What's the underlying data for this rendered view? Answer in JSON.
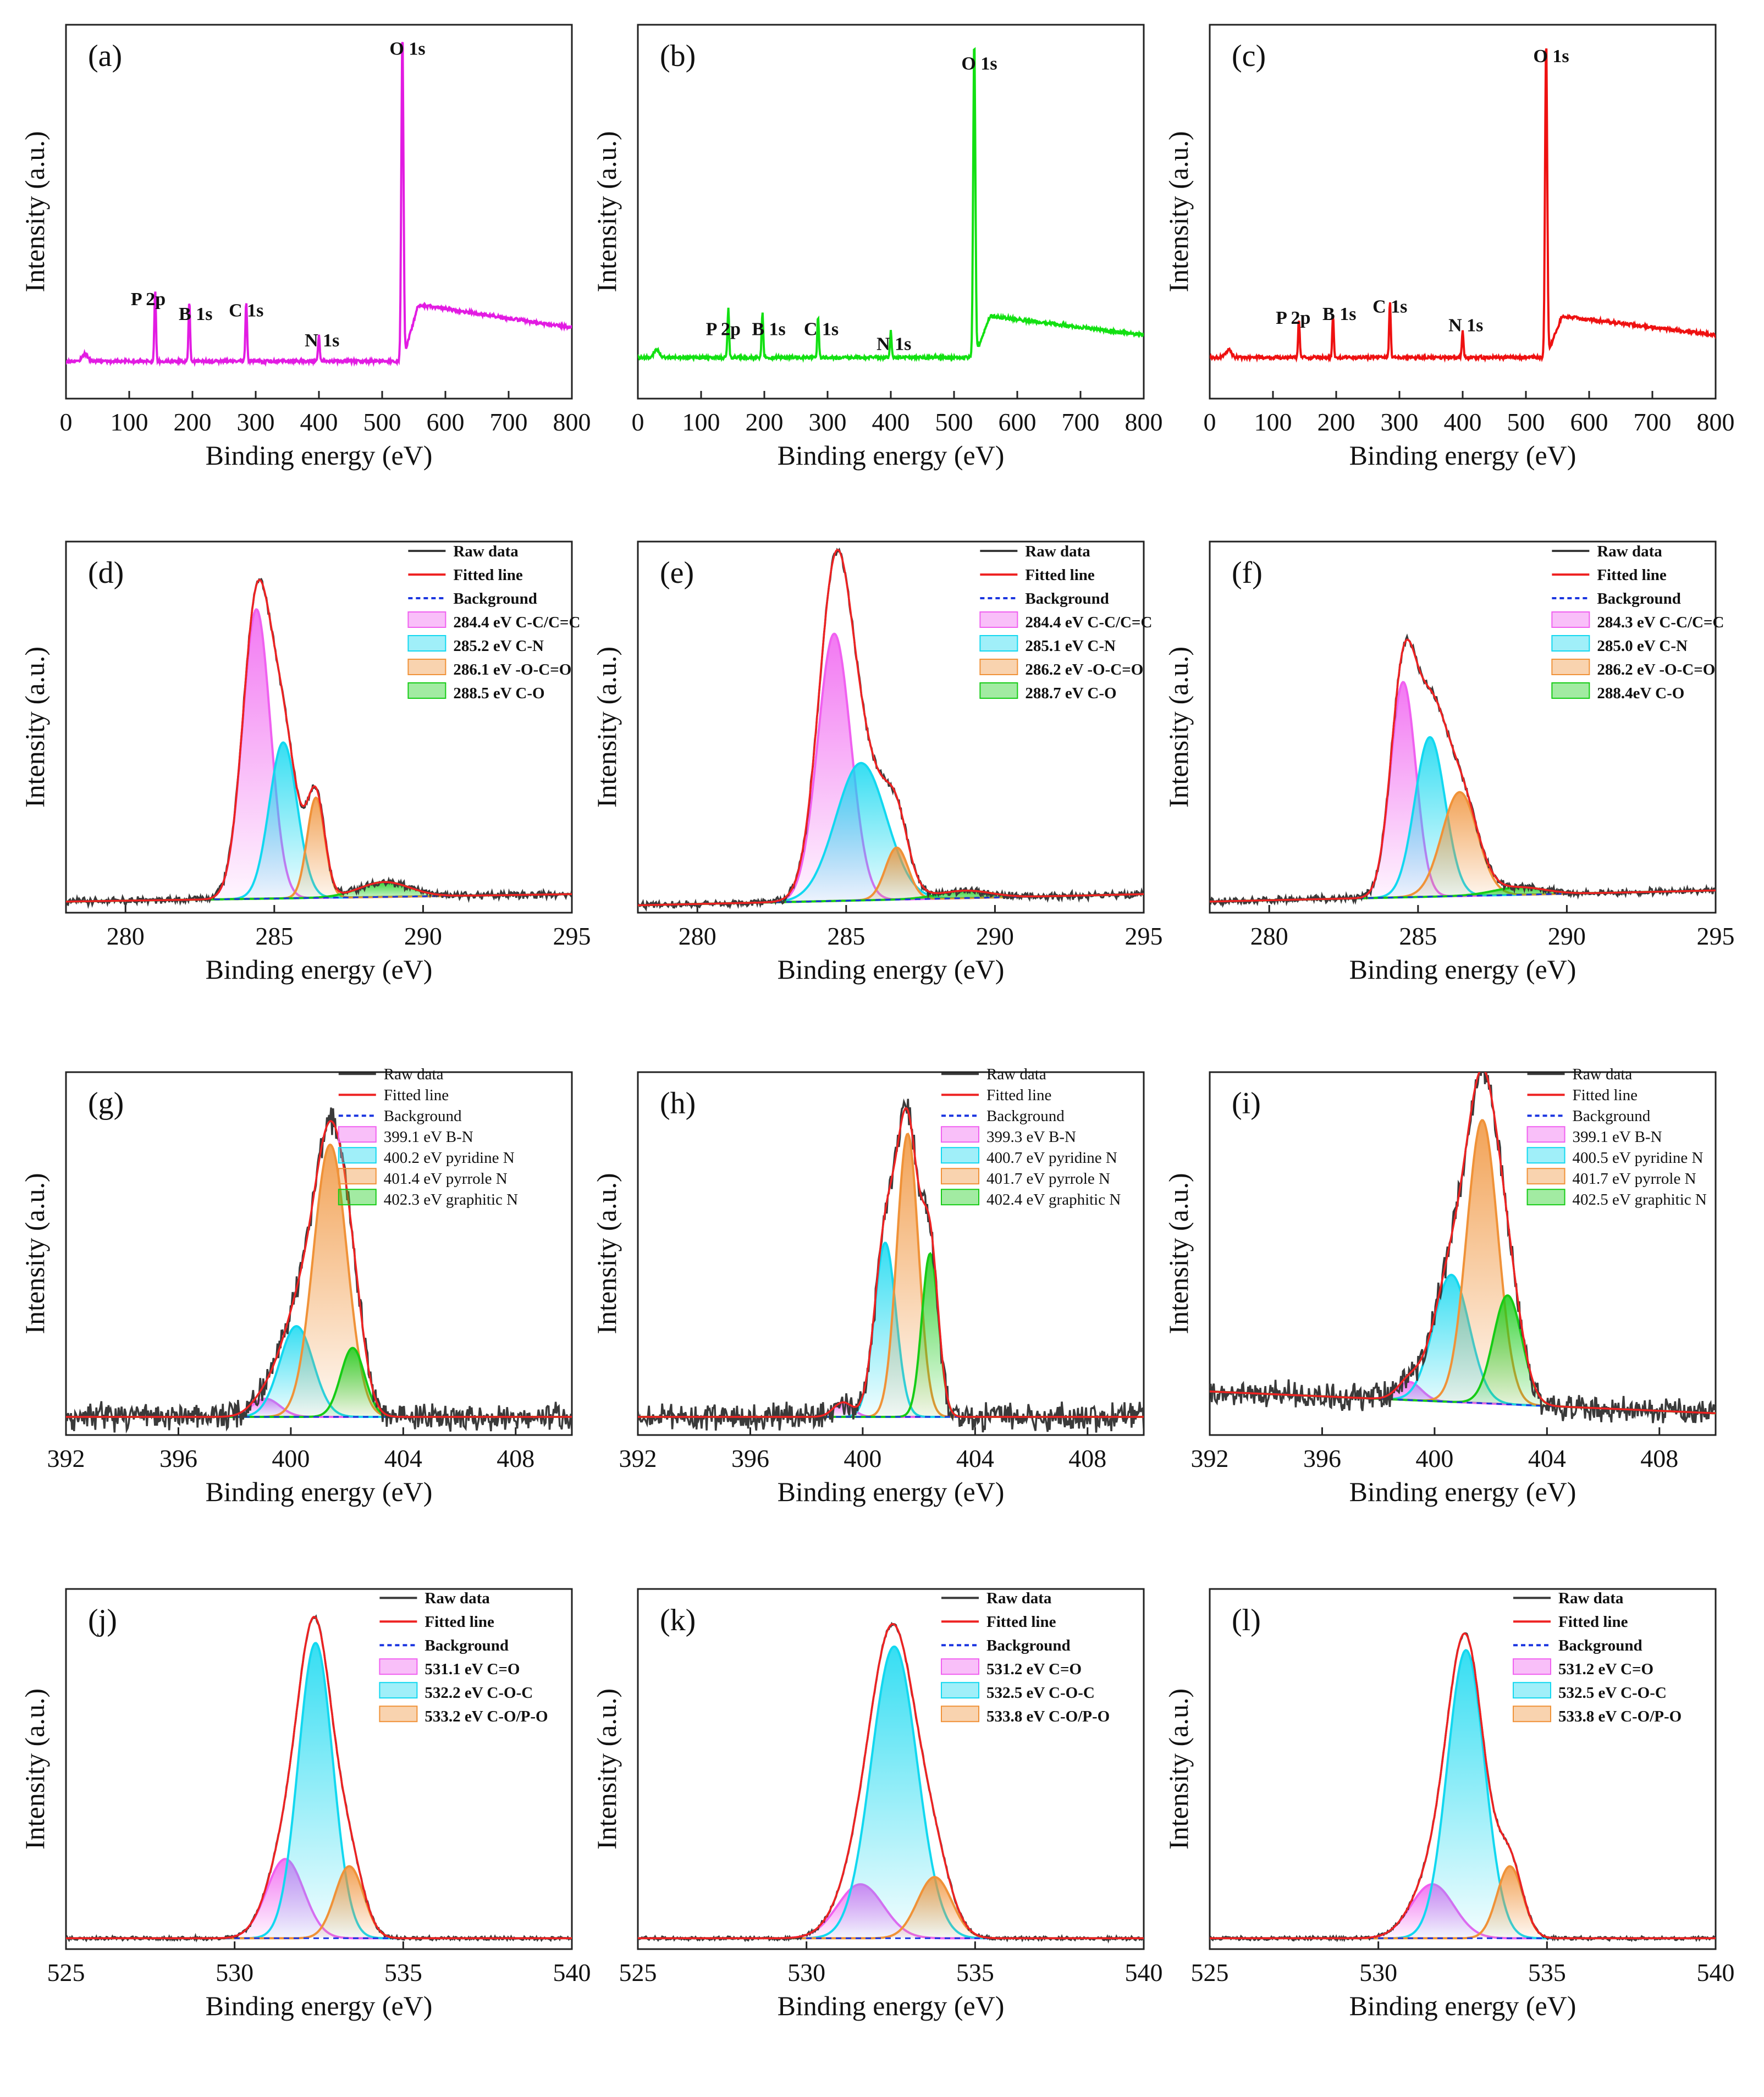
{
  "figure": {
    "xlabel": "Binding energy (eV)",
    "ylabel": "Intensity (a.u.)"
  },
  "colors": {
    "survey_a": "#e21be2",
    "survey_b": "#12e012",
    "survey_c": "#ee1111",
    "raw": "#3a3a3a",
    "fitted": "#ee2222",
    "background": "#1a35e0",
    "comp_pink": "#f060f0",
    "comp_cyan": "#12d8f0",
    "comp_orange": "#f09238",
    "comp_green": "#16cc16"
  },
  "chart_data": [
    {
      "id": "a",
      "label": "(a)",
      "type": "line",
      "region": "survey",
      "color_key": "survey_a",
      "xlim": [
        0,
        800
      ],
      "xticks": [
        0,
        100,
        200,
        300,
        400,
        500,
        600,
        700,
        800
      ],
      "ylim": [
        0,
        1
      ],
      "peaks": [
        {
          "name": "P 2p",
          "x": 141,
          "h": 0.19
        },
        {
          "name": "B 1s",
          "x": 195,
          "h": 0.16
        },
        {
          "name": "C 1s",
          "x": 285,
          "h": 0.16
        },
        {
          "name": "N 1s",
          "x": 400,
          "h": 0.07
        },
        {
          "name": "O 1s",
          "x": 532,
          "h": 0.88
        }
      ],
      "peak_labels": [
        {
          "text": "P 2p",
          "x": 130,
          "y": 0.25
        },
        {
          "text": "B 1s",
          "x": 205,
          "y": 0.21
        },
        {
          "text": "C 1s",
          "x": 285,
          "y": 0.22
        },
        {
          "text": "N 1s",
          "x": 405,
          "y": 0.14
        },
        {
          "text": "O 1s",
          "x": 540,
          "y": 0.92
        }
      ],
      "baseline": 0.1,
      "post_level": 0.25,
      "post_decay": 0.06
    },
    {
      "id": "b",
      "label": "(b)",
      "type": "line",
      "region": "survey",
      "color_key": "survey_b",
      "xlim": [
        0,
        800
      ],
      "xticks": [
        0,
        100,
        200,
        300,
        400,
        500,
        600,
        700,
        800
      ],
      "ylim": [
        0,
        1
      ],
      "peaks": [
        {
          "name": "P 2p",
          "x": 143,
          "h": 0.13
        },
        {
          "name": "B 1s",
          "x": 197,
          "h": 0.12
        },
        {
          "name": "C 1s",
          "x": 285,
          "h": 0.11
        },
        {
          "name": "N 1s",
          "x": 400,
          "h": 0.07
        },
        {
          "name": "O 1s",
          "x": 532,
          "h": 0.85
        }
      ],
      "peak_labels": [
        {
          "text": "P 2p",
          "x": 135,
          "y": 0.17
        },
        {
          "text": "B 1s",
          "x": 207,
          "y": 0.17
        },
        {
          "text": "C 1s",
          "x": 290,
          "y": 0.17
        },
        {
          "text": "N 1s",
          "x": 405,
          "y": 0.13
        },
        {
          "text": "O 1s",
          "x": 540,
          "y": 0.88
        }
      ],
      "baseline": 0.11,
      "post_level": 0.22,
      "post_decay": 0.05
    },
    {
      "id": "c",
      "label": "(c)",
      "type": "line",
      "region": "survey",
      "color_key": "survey_c",
      "xlim": [
        0,
        800
      ],
      "xticks": [
        0,
        100,
        200,
        300,
        400,
        500,
        600,
        700,
        800
      ],
      "ylim": [
        0,
        1
      ],
      "peaks": [
        {
          "name": "P 2p",
          "x": 141,
          "h": 0.1
        },
        {
          "name": "B 1s",
          "x": 195,
          "h": 0.11
        },
        {
          "name": "C 1s",
          "x": 285,
          "h": 0.15
        },
        {
          "name": "N 1s",
          "x": 400,
          "h": 0.07
        },
        {
          "name": "O 1s",
          "x": 532,
          "h": 0.85
        }
      ],
      "peak_labels": [
        {
          "text": "P 2p",
          "x": 132,
          "y": 0.2
        },
        {
          "text": "B 1s",
          "x": 205,
          "y": 0.21
        },
        {
          "text": "C 1s",
          "x": 285,
          "y": 0.23
        },
        {
          "text": "N 1s",
          "x": 405,
          "y": 0.18
        },
        {
          "text": "O 1s",
          "x": 540,
          "y": 0.9
        }
      ],
      "baseline": 0.11,
      "post_level": 0.22,
      "post_decay": 0.05
    },
    {
      "id": "d",
      "label": "(d)",
      "type": "line",
      "region": "C1s",
      "xlim": [
        278,
        295
      ],
      "xticks": [
        280,
        285,
        290,
        295
      ],
      "ylim": [
        0,
        1
      ],
      "noise": 0.008,
      "background_line": [
        0.03,
        0.05
      ],
      "legend": {
        "x": 289.5,
        "y": 0.96,
        "bold": true
      },
      "legend_lines": [
        "Raw data",
        "Fitted line",
        "Background"
      ],
      "components": [
        {
          "label": "284.4 eV  C-C/C=C",
          "center": 284.4,
          "height": 0.78,
          "fwhm": 1.1,
          "color_key": "comp_pink"
        },
        {
          "label": "285.2 eV  C-N",
          "center": 285.3,
          "height": 0.42,
          "fwhm": 1.1,
          "color_key": "comp_cyan"
        },
        {
          "label": "286.1 eV  -O-C=O",
          "center": 286.4,
          "height": 0.27,
          "fwhm": 0.7,
          "color_key": "comp_orange"
        },
        {
          "label": "288.5 eV  C-O",
          "center": 288.7,
          "height": 0.04,
          "fwhm": 2.0,
          "color_key": "comp_green"
        }
      ]
    },
    {
      "id": "e",
      "label": "(e)",
      "type": "line",
      "region": "C1s",
      "xlim": [
        278,
        295
      ],
      "xticks": [
        280,
        285,
        290,
        295
      ],
      "ylim": [
        0,
        1
      ],
      "noise": 0.008,
      "background_line": [
        0.02,
        0.05
      ],
      "legend": {
        "x": 289.5,
        "y": 0.96,
        "bold": true
      },
      "legend_lines": [
        "Raw data",
        "Fitted line",
        "Background"
      ],
      "components": [
        {
          "label": "284.4 eV  C-C/C=C",
          "center": 284.6,
          "height": 0.72,
          "fwhm": 1.3,
          "color_key": "comp_pink"
        },
        {
          "label": "285.1 eV  C-N",
          "center": 285.5,
          "height": 0.37,
          "fwhm": 2.0,
          "color_key": "comp_cyan"
        },
        {
          "label": "286.2 eV  -O-C=O",
          "center": 286.7,
          "height": 0.14,
          "fwhm": 0.9,
          "color_key": "comp_orange"
        },
        {
          "label": "288.7 eV  C-O",
          "center": 289.0,
          "height": 0.02,
          "fwhm": 2.0,
          "color_key": "comp_green"
        }
      ]
    },
    {
      "id": "f",
      "label": "(f)",
      "type": "line",
      "region": "C1s",
      "xlim": [
        278,
        295
      ],
      "xticks": [
        280,
        285,
        290,
        295
      ],
      "ylim": [
        0,
        1
      ],
      "noise": 0.008,
      "background_line": [
        0.03,
        0.06
      ],
      "legend": {
        "x": 289.5,
        "y": 0.96,
        "bold": true
      },
      "legend_lines": [
        "Raw data",
        "Fitted line",
        "Background"
      ],
      "components": [
        {
          "label": "284.3 eV  C-C/C=C",
          "center": 284.5,
          "height": 0.58,
          "fwhm": 1.0,
          "color_key": "comp_pink"
        },
        {
          "label": "285.0 eV  C-N",
          "center": 285.4,
          "height": 0.43,
          "fwhm": 1.2,
          "color_key": "comp_cyan"
        },
        {
          "label": "286.2 eV  -O-C=O",
          "center": 286.4,
          "height": 0.28,
          "fwhm": 1.4,
          "color_key": "comp_orange"
        },
        {
          "label": "288.4eV  C-O",
          "center": 288.4,
          "height": 0.02,
          "fwhm": 2.0,
          "color_key": "comp_green"
        }
      ]
    },
    {
      "id": "g",
      "label": "(g)",
      "type": "line",
      "region": "N1s",
      "xlim": [
        392,
        410
      ],
      "xticks": [
        392,
        396,
        400,
        404,
        408
      ],
      "ylim": [
        0,
        1
      ],
      "noise": 0.03,
      "background_line": [
        0.05,
        0.05
      ],
      "legend": {
        "x": 401.7,
        "y": 0.98,
        "bold": false
      },
      "legend_lines": [
        "Raw data",
        "Fitted line",
        "Background"
      ],
      "components": [
        {
          "label": "399.1 eV B-N",
          "center": 399.1,
          "height": 0.05,
          "fwhm": 1.2,
          "color_key": "comp_pink"
        },
        {
          "label": "400.2 eV pyridine N",
          "center": 400.2,
          "height": 0.25,
          "fwhm": 1.4,
          "color_key": "comp_cyan"
        },
        {
          "label": "401.4 eV pyrrole N",
          "center": 401.4,
          "height": 0.75,
          "fwhm": 1.4,
          "color_key": "comp_orange"
        },
        {
          "label": "402.3 eV graphitic N",
          "center": 402.2,
          "height": 0.19,
          "fwhm": 1.0,
          "color_key": "comp_green"
        }
      ]
    },
    {
      "id": "h",
      "label": "(h)",
      "type": "line",
      "region": "N1s",
      "xlim": [
        392,
        410
      ],
      "xticks": [
        392,
        396,
        400,
        404,
        408
      ],
      "ylim": [
        0,
        1
      ],
      "noise": 0.03,
      "background_line": [
        0.05,
        0.05
      ],
      "legend": {
        "x": 402.8,
        "y": 0.98,
        "bold": false
      },
      "legend_lines": [
        "Raw data",
        "Fitted line",
        "Background"
      ],
      "components": [
        {
          "label": "399.3 eV B-N",
          "center": 399.3,
          "height": 0.04,
          "fwhm": 0.8,
          "color_key": "comp_pink"
        },
        {
          "label": "400.7 eV pyridine N",
          "center": 400.8,
          "height": 0.48,
          "fwhm": 0.9,
          "color_key": "comp_cyan"
        },
        {
          "label": "401.7 eV pyrrole N",
          "center": 401.6,
          "height": 0.78,
          "fwhm": 0.9,
          "color_key": "comp_orange"
        },
        {
          "label": "402.4 eV graphitic N",
          "center": 402.4,
          "height": 0.45,
          "fwhm": 0.7,
          "color_key": "comp_green"
        }
      ]
    },
    {
      "id": "i",
      "label": "(i)",
      "type": "line",
      "region": "N1s",
      "xlim": [
        392,
        410
      ],
      "xticks": [
        392,
        396,
        400,
        404,
        408
      ],
      "ylim": [
        0,
        1
      ],
      "noise": 0.03,
      "background_line": [
        0.12,
        0.06
      ],
      "legend": {
        "x": 403.3,
        "y": 0.98,
        "bold": false
      },
      "legend_lines": [
        "Raw data",
        "Fitted line",
        "Background"
      ],
      "components": [
        {
          "label": "399.1 eV B-N",
          "center": 399.1,
          "height": 0.05,
          "fwhm": 1.0,
          "color_key": "comp_pink"
        },
        {
          "label": "400.5 eV pyridine N",
          "center": 400.6,
          "height": 0.35,
          "fwhm": 1.5,
          "color_key": "comp_cyan"
        },
        {
          "label": "401.7 eV pyrrole N",
          "center": 401.7,
          "height": 0.78,
          "fwhm": 1.3,
          "color_key": "comp_orange"
        },
        {
          "label": "402.5 eV graphitic N",
          "center": 402.6,
          "height": 0.3,
          "fwhm": 1.2,
          "color_key": "comp_green"
        }
      ]
    },
    {
      "id": "j",
      "label": "(j)",
      "type": "line",
      "region": "O1s",
      "xlim": [
        525,
        540
      ],
      "xticks": [
        525,
        530,
        535,
        540
      ],
      "ylim": [
        0,
        1
      ],
      "noise": 0.004,
      "background_line": [
        0.03,
        0.03
      ],
      "legend": {
        "x": 534.3,
        "y": 0.96,
        "bold": true
      },
      "legend_lines": [
        "Raw data",
        "Fitted line",
        "Background"
      ],
      "components": [
        {
          "label": "531.1 eV  C=O",
          "center": 531.5,
          "height": 0.22,
          "fwhm": 1.3,
          "color_key": "comp_pink"
        },
        {
          "label": "532.2 eV  C-O-C",
          "center": 532.4,
          "height": 0.82,
          "fwhm": 1.2,
          "color_key": "comp_cyan"
        },
        {
          "label": "533.2 eV  C-O/P-O",
          "center": 533.4,
          "height": 0.2,
          "fwhm": 1.0,
          "color_key": "comp_orange"
        }
      ]
    },
    {
      "id": "k",
      "label": "(k)",
      "type": "line",
      "region": "O1s",
      "xlim": [
        525,
        540
      ],
      "xticks": [
        525,
        530,
        535,
        540
      ],
      "ylim": [
        0,
        1
      ],
      "noise": 0.004,
      "background_line": [
        0.03,
        0.03
      ],
      "legend": {
        "x": 534.0,
        "y": 0.96,
        "bold": true
      },
      "legend_lines": [
        "Raw data",
        "Fitted line",
        "Background"
      ],
      "components": [
        {
          "label": "531.2 eV  C=O",
          "center": 531.6,
          "height": 0.15,
          "fwhm": 1.6,
          "color_key": "comp_pink"
        },
        {
          "label": "532.5 eV  C-O-C",
          "center": 532.6,
          "height": 0.81,
          "fwhm": 1.6,
          "color_key": "comp_cyan"
        },
        {
          "label": "533.8 eV  C-O/P-O",
          "center": 533.8,
          "height": 0.17,
          "fwhm": 1.2,
          "color_key": "comp_orange"
        }
      ]
    },
    {
      "id": "l",
      "label": "(l)",
      "type": "line",
      "region": "O1s",
      "xlim": [
        525,
        540
      ],
      "xticks": [
        525,
        530,
        535,
        540
      ],
      "ylim": [
        0,
        1
      ],
      "noise": 0.004,
      "background_line": [
        0.03,
        0.03
      ],
      "legend": {
        "x": 534.0,
        "y": 0.96,
        "bold": true
      },
      "legend_lines": [
        "Raw data",
        "Fitted line",
        "Background"
      ],
      "components": [
        {
          "label": "531.2 eV  C=O",
          "center": 531.6,
          "height": 0.15,
          "fwhm": 1.5,
          "color_key": "comp_pink"
        },
        {
          "label": "532.5 eV  C-O-C",
          "center": 532.6,
          "height": 0.8,
          "fwhm": 1.3,
          "color_key": "comp_cyan"
        },
        {
          "label": "533.8 eV  C-O/P-O",
          "center": 533.9,
          "height": 0.2,
          "fwhm": 0.9,
          "color_key": "comp_orange"
        }
      ]
    }
  ]
}
